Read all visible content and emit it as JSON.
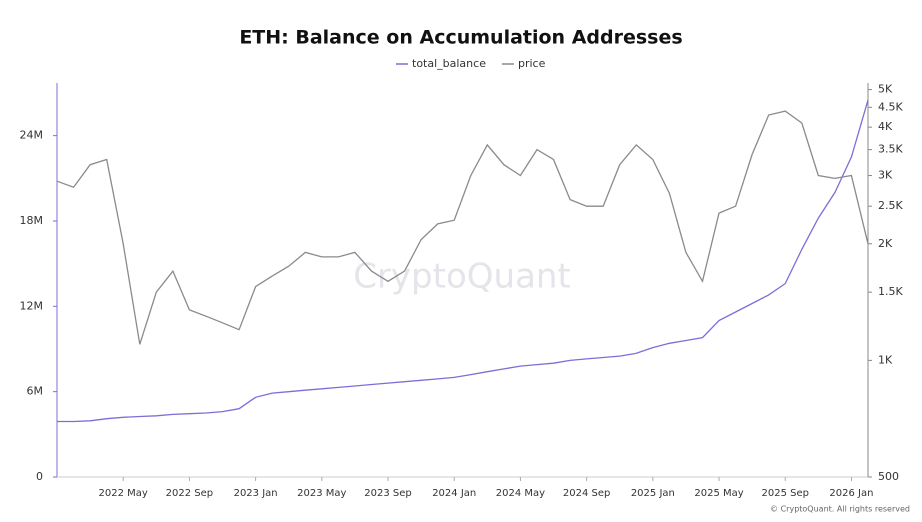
{
  "chart_data": {
    "type": "line",
    "title": "ETH: Balance on Accumulation Addresses",
    "watermark": "CryptoQuant",
    "footer": "© CryptoQuant. All rights reserved",
    "x": [
      "2022-01",
      "2022-02",
      "2022-03",
      "2022-04",
      "2022-05",
      "2022-06",
      "2022-07",
      "2022-08",
      "2022-09",
      "2022-10",
      "2022-11",
      "2022-12",
      "2023-01",
      "2023-02",
      "2023-03",
      "2023-04",
      "2023-05",
      "2023-06",
      "2023-07",
      "2023-08",
      "2023-09",
      "2023-10",
      "2023-11",
      "2023-12",
      "2024-01",
      "2024-02",
      "2024-03",
      "2024-04",
      "2024-05",
      "2024-06",
      "2024-07",
      "2024-08",
      "2024-09",
      "2024-10",
      "2024-11",
      "2024-12",
      "2025-01",
      "2025-02",
      "2025-03",
      "2025-04",
      "2025-05",
      "2025-06",
      "2025-07",
      "2025-08",
      "2025-09",
      "2025-10",
      "2025-11",
      "2025-12",
      "2026-01",
      "2026-02"
    ],
    "xlim": [
      "2022-01",
      "2026-02"
    ],
    "xticks": [
      {
        "value": "2022-05",
        "label": "2022 May"
      },
      {
        "value": "2022-09",
        "label": "2022 Sep"
      },
      {
        "value": "2023-01",
        "label": "2023 Jan"
      },
      {
        "value": "2023-05",
        "label": "2023 May"
      },
      {
        "value": "2023-09",
        "label": "2023 Sep"
      },
      {
        "value": "2024-01",
        "label": "2024 Jan"
      },
      {
        "value": "2024-05",
        "label": "2024 May"
      },
      {
        "value": "2024-09",
        "label": "2024 Sep"
      },
      {
        "value": "2025-01",
        "label": "2025 Jan"
      },
      {
        "value": "2025-05",
        "label": "2025 May"
      },
      {
        "value": "2025-09",
        "label": "2025 Sep"
      },
      {
        "value": "2026-01",
        "label": "2026 Jan"
      }
    ],
    "ylim": [
      0,
      27700000
    ],
    "yticks": [
      0,
      {
        "value": 6000000,
        "label": "6M"
      },
      {
        "value": 12000000,
        "label": "12M"
      },
      {
        "value": 18000000,
        "label": "18M"
      },
      {
        "value": 24000000,
        "label": "24M"
      }
    ],
    "y2lim": [
      500,
      5200
    ],
    "y2scale": "log",
    "y2ticks": [
      500,
      {
        "value": 1000,
        "label": "1K"
      },
      {
        "value": 1500,
        "label": "1.5K"
      },
      {
        "value": 2000,
        "label": "2K"
      },
      {
        "value": 2500,
        "label": "2.5K"
      },
      {
        "value": 3000,
        "label": "3K"
      },
      {
        "value": 3500,
        "label": "3.5K"
      },
      {
        "value": 4000,
        "label": "4K"
      },
      {
        "value": 4500,
        "label": "4.5K"
      },
      {
        "value": 5000,
        "label": "5K"
      }
    ],
    "series": [
      {
        "name": "total_balance",
        "color": "#7b6fd6",
        "values": [
          3900000,
          3900000,
          3950000,
          4100000,
          4200000,
          4250000,
          4300000,
          4400000,
          4450000,
          4500000,
          4600000,
          4800000,
          5600000,
          5900000,
          6000000,
          6100000,
          6200000,
          6300000,
          6400000,
          6500000,
          6600000,
          6700000,
          6800000,
          6900000,
          7000000,
          7200000,
          7400000,
          7600000,
          7800000,
          7900000,
          8000000,
          8200000,
          8300000,
          8400000,
          8500000,
          8700000,
          9100000,
          9400000,
          9600000,
          9800000,
          11000000,
          11600000,
          12200000,
          12800000,
          13600000,
          16000000,
          18200000,
          20000000,
          22500000,
          26500000
        ]
      },
      {
        "name": "price",
        "color": "#8a8a8a",
        "axis": "y2",
        "values": [
          2900,
          2800,
          3200,
          3300,
          2000,
          1100,
          1500,
          1700,
          1350,
          1300,
          1250,
          1200,
          1550,
          1650,
          1750,
          1900,
          1850,
          1850,
          1900,
          1700,
          1600,
          1700,
          2050,
          2250,
          2300,
          3000,
          3600,
          3200,
          3000,
          3500,
          3300,
          2600,
          2500,
          2500,
          3200,
          3600,
          3300,
          2700,
          1900,
          1600,
          2400,
          2500,
          3400,
          4300,
          4400,
          4100,
          3000,
          2950,
          3000,
          2000
        ]
      }
    ]
  }
}
